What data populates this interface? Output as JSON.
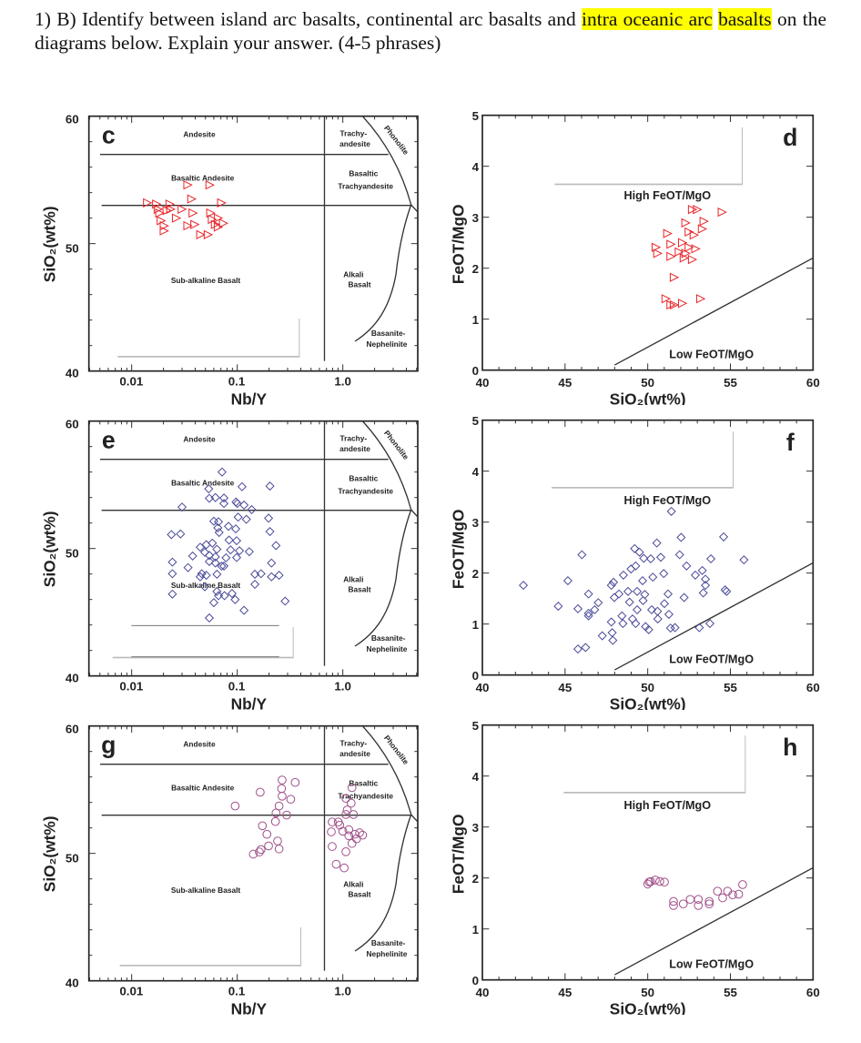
{
  "question": {
    "prefix": "1) B) Identify between island arc basalts, continental arc basalts and ",
    "highlight1": "intra oceanic arc",
    "space": " ",
    "highlight2": "basalts",
    "suffix": " on the diagrams below. Explain your answer.  (4-5 phrases)",
    "highlight_color": "#ffff00"
  },
  "chart_data": [
    {
      "panel": "c",
      "type": "scatter",
      "kind": "classification",
      "xlabel": "Nb/Y",
      "ylabel": "SiO₂(wt%)",
      "xscale": "log",
      "xlim": [
        0.004,
        5.1
      ],
      "ylim": [
        40,
        60
      ],
      "xticks": [
        "0.01",
        "0.1",
        "1.0"
      ],
      "yticks": [
        "40",
        "50",
        "60"
      ],
      "boundaries": {
        "sio2_lines": [
          57,
          53
        ],
        "nb_y_line": 0.67
      },
      "field_labels": [
        "Andesite",
        "Basaltic Andesite",
        "Sub-alkaline Basalt",
        "Trachy-",
        "andesite",
        "Basaltic",
        "Trachyandesite",
        "Alkali",
        "Basalt",
        "Basanite-",
        "Nephelinite",
        "Phonolite"
      ],
      "marker": "triangle",
      "color": "#e8262a",
      "points": [
        [
          0.0141,
          53.2
        ],
        [
          0.0178,
          52.7
        ],
        [
          0.0184,
          52.4
        ],
        [
          0.023,
          53.1
        ],
        [
          0.0216,
          52.6
        ],
        [
          0.0265,
          52.0
        ],
        [
          0.0203,
          51.4
        ],
        [
          0.0203,
          51.0
        ],
        [
          0.034,
          54.6
        ],
        [
          0.03,
          52.7
        ],
        [
          0.037,
          53.5
        ],
        [
          0.0381,
          52.4
        ],
        [
          0.034,
          51.4
        ],
        [
          0.0396,
          51.5
        ],
        [
          0.045,
          50.7
        ],
        [
          0.053,
          50.7
        ],
        [
          0.055,
          54.6
        ],
        [
          0.056,
          52.4
        ],
        [
          0.058,
          51.9
        ],
        [
          0.062,
          51.5
        ],
        [
          0.066,
          52.0
        ],
        [
          0.071,
          53.2
        ],
        [
          0.074,
          51.6
        ],
        [
          0.066,
          51.3
        ],
        [
          0.0172,
          53.1
        ],
        [
          0.019,
          51.8
        ],
        [
          0.0234,
          52.7
        ]
      ]
    },
    {
      "panel": "d",
      "type": "scatter",
      "kind": "feot",
      "xlabel": "SiO₂(wt%)",
      "ylabel": "FeOT/MgO",
      "xlim": [
        40,
        60
      ],
      "ylim": [
        0,
        5
      ],
      "xticks": [
        "40",
        "45",
        "50",
        "55",
        "60"
      ],
      "yticks": [
        "0",
        "1",
        "2",
        "3",
        "4",
        "5"
      ],
      "boundary_line": [
        [
          48,
          0.1
        ],
        [
          60,
          2.2
        ]
      ],
      "field_labels": [
        "High FeOT/MgO",
        "Low FeOT/MgO"
      ],
      "marker": "triangle",
      "color": "#e8262a",
      "points": [
        [
          51.2,
          2.68
        ],
        [
          50.5,
          2.41
        ],
        [
          50.6,
          2.29
        ],
        [
          51.4,
          2.47
        ],
        [
          51.4,
          2.23
        ],
        [
          52.1,
          2.5
        ],
        [
          52.3,
          2.89
        ],
        [
          52.7,
          3.15
        ],
        [
          53.0,
          3.15
        ],
        [
          53.4,
          2.92
        ],
        [
          53.3,
          2.77
        ],
        [
          52.8,
          2.65
        ],
        [
          52.5,
          2.41
        ],
        [
          52.3,
          2.29
        ],
        [
          52.7,
          2.17
        ],
        [
          52.9,
          2.38
        ],
        [
          51.9,
          2.32
        ],
        [
          54.5,
          3.1
        ],
        [
          51.6,
          1.82
        ],
        [
          51.1,
          1.4
        ],
        [
          51.4,
          1.28
        ],
        [
          51.6,
          1.28
        ],
        [
          52.1,
          1.31
        ],
        [
          53.2,
          1.4
        ],
        [
          52.5,
          2.71
        ],
        [
          52.2,
          2.2
        ]
      ]
    },
    {
      "panel": "e",
      "type": "scatter",
      "kind": "classification",
      "xlabel": "Nb/Y",
      "ylabel": "SiO₂(wt%)",
      "xscale": "log",
      "xlim": [
        0.004,
        5.1
      ],
      "ylim": [
        40,
        60
      ],
      "xticks": [
        "0.01",
        "0.1",
        "1.0"
      ],
      "yticks": [
        "40",
        "50",
        "60"
      ],
      "boundaries": {
        "sio2_lines": [
          57,
          53
        ],
        "nb_y_line": 0.67
      },
      "field_labels": [
        "Andesite",
        "Basaltic Andesite",
        "Sub-alkaline Basalt",
        "Trachy-",
        "andesite",
        "Basaltic",
        "Trachyandesite",
        "Alkali",
        "Basalt",
        "Basanite-",
        "Nephelinite",
        "Phonolite"
      ],
      "marker": "diamond",
      "color": "#4a4a9a",
      "points": [
        [
          0.0718,
          56.0
        ],
        [
          0.0537,
          54.68
        ],
        [
          0.111,
          54.85
        ],
        [
          0.204,
          54.9
        ],
        [
          0.0544,
          53.94
        ],
        [
          0.0621,
          54.0
        ],
        [
          0.0748,
          53.96
        ],
        [
          0.0748,
          53.53
        ],
        [
          0.0974,
          53.65
        ],
        [
          0.1,
          53.53
        ],
        [
          0.116,
          53.41
        ],
        [
          0.137,
          53.05
        ],
        [
          0.03,
          53.25
        ],
        [
          0.102,
          52.46
        ],
        [
          0.122,
          52.29
        ],
        [
          0.198,
          52.38
        ],
        [
          0.06,
          52.14
        ],
        [
          0.0664,
          52.1
        ],
        [
          0.0655,
          51.62
        ],
        [
          0.0826,
          51.74
        ],
        [
          0.0968,
          51.54
        ],
        [
          0.0673,
          51.26
        ],
        [
          0.0238,
          51.09
        ],
        [
          0.029,
          51.14
        ],
        [
          0.204,
          51.33
        ],
        [
          0.0446,
          50.1
        ],
        [
          0.0509,
          50.3
        ],
        [
          0.0581,
          50.42
        ],
        [
          0.0642,
          49.94
        ],
        [
          0.0836,
          50.66
        ],
        [
          0.0987,
          50.61
        ],
        [
          0.0865,
          49.89
        ],
        [
          0.105,
          49.82
        ],
        [
          0.13,
          49.75
        ],
        [
          0.233,
          50.23
        ],
        [
          0.0378,
          49.41
        ],
        [
          0.0342,
          48.5
        ],
        [
          0.0493,
          49.7
        ],
        [
          0.0544,
          49.46
        ],
        [
          0.0621,
          49.34
        ],
        [
          0.0783,
          49.27
        ],
        [
          0.0987,
          49.29
        ],
        [
          0.0243,
          48.93
        ],
        [
          0.0544,
          48.98
        ],
        [
          0.0621,
          48.86
        ],
        [
          0.071,
          48.62
        ],
        [
          0.0461,
          48.02
        ],
        [
          0.0509,
          47.9
        ],
        [
          0.0642,
          47.98
        ],
        [
          0.0748,
          48.62
        ],
        [
          0.0243,
          48.02
        ],
        [
          0.147,
          47.98
        ],
        [
          0.168,
          48.02
        ],
        [
          0.147,
          47.19
        ],
        [
          0.211,
          48.86
        ],
        [
          0.211,
          47.78
        ],
        [
          0.249,
          47.9
        ],
        [
          0.0493,
          47.0
        ],
        [
          0.0642,
          46.63
        ],
        [
          0.0664,
          46.3
        ],
        [
          0.0757,
          46.3
        ],
        [
          0.0893,
          46.47
        ],
        [
          0.0955,
          45.99
        ],
        [
          0.06,
          45.75
        ],
        [
          0.116,
          45.15
        ],
        [
          0.284,
          45.87
        ],
        [
          0.0243,
          46.42
        ],
        [
          0.0544,
          44.55
        ],
        [
          0.0446,
          47.78
        ]
      ]
    },
    {
      "panel": "f",
      "type": "scatter",
      "kind": "feot",
      "xlabel": "SiO₂(wt%)",
      "ylabel": "FeOT/MgO",
      "xlim": [
        40,
        60
      ],
      "ylim": [
        0,
        5
      ],
      "xticks": [
        "40",
        "45",
        "50",
        "55",
        "60"
      ],
      "yticks": [
        "0",
        "1",
        "2",
        "3",
        "4",
        "5"
      ],
      "boundary_line": [
        [
          48,
          0.1
        ],
        [
          60,
          2.2
        ]
      ],
      "field_labels": [
        "High FeOT/MgO",
        "Low FeOT/MgO"
      ],
      "marker": "diamond",
      "color": "#4a4a9a",
      "points": [
        [
          42.48,
          1.76
        ],
        [
          44.59,
          1.35
        ],
        [
          45.17,
          1.85
        ],
        [
          45.78,
          1.3
        ],
        [
          46.02,
          2.36
        ],
        [
          46.42,
          1.59
        ],
        [
          46.42,
          1.21
        ],
        [
          46.42,
          1.16
        ],
        [
          46.79,
          1.28
        ],
        [
          47.01,
          1.42
        ],
        [
          47.25,
          0.77
        ],
        [
          45.78,
          0.51
        ],
        [
          46.24,
          0.54
        ],
        [
          47.8,
          1.76
        ],
        [
          47.8,
          1.04
        ],
        [
          47.85,
          0.83
        ],
        [
          47.89,
          0.68
        ],
        [
          47.93,
          1.82
        ],
        [
          47.98,
          1.52
        ],
        [
          48.26,
          1.59
        ],
        [
          48.44,
          1.16
        ],
        [
          48.5,
          1.01
        ],
        [
          48.53,
          1.96
        ],
        [
          48.81,
          1.64
        ],
        [
          48.9,
          1.43
        ],
        [
          48.99,
          2.08
        ],
        [
          49.08,
          1.1
        ],
        [
          49.21,
          2.48
        ],
        [
          49.27,
          2.14
        ],
        [
          49.27,
          1.01
        ],
        [
          49.36,
          1.64
        ],
        [
          49.36,
          1.28
        ],
        [
          49.5,
          2.41
        ],
        [
          49.69,
          1.85
        ],
        [
          49.72,
          1.46
        ],
        [
          49.76,
          2.29
        ],
        [
          49.82,
          1.58
        ],
        [
          49.87,
          0.95
        ],
        [
          50.06,
          0.89
        ],
        [
          50.18,
          2.28
        ],
        [
          50.24,
          1.28
        ],
        [
          50.31,
          1.92
        ],
        [
          50.55,
          2.59
        ],
        [
          50.59,
          1.25
        ],
        [
          50.61,
          1.1
        ],
        [
          50.79,
          2.31
        ],
        [
          50.97,
          1.99
        ],
        [
          51.01,
          1.4
        ],
        [
          51.23,
          1.59
        ],
        [
          51.28,
          1.19
        ],
        [
          51.38,
          0.92
        ],
        [
          51.43,
          3.21
        ],
        [
          51.65,
          0.93
        ],
        [
          51.93,
          2.36
        ],
        [
          52.02,
          2.7
        ],
        [
          52.2,
          1.52
        ],
        [
          52.35,
          2.14
        ],
        [
          52.88,
          1.96
        ],
        [
          53.12,
          0.93
        ],
        [
          53.3,
          2.05
        ],
        [
          53.36,
          1.61
        ],
        [
          53.49,
          1.88
        ],
        [
          53.49,
          1.76
        ],
        [
          53.76,
          1.01
        ],
        [
          53.82,
          2.28
        ],
        [
          54.59,
          2.71
        ],
        [
          54.68,
          1.67
        ],
        [
          54.77,
          1.64
        ],
        [
          55.82,
          2.26
        ]
      ]
    },
    {
      "panel": "g",
      "type": "scatter",
      "kind": "classification",
      "xlabel": "Nb/Y",
      "ylabel": "SiO₂(wt%)",
      "xscale": "log",
      "xlim": [
        0.004,
        5.1
      ],
      "ylim": [
        40,
        60
      ],
      "xticks": [
        "0.01",
        "0.1",
        "1.0"
      ],
      "yticks": [
        "40",
        "50",
        "60"
      ],
      "boundaries": {
        "sio2_lines": [
          57,
          53
        ],
        "nb_y_line": 0.67
      },
      "field_labels": [
        "Andesite",
        "Basaltic Andesite",
        "Sub-alkaline Basalt",
        "Trachy-",
        "andesite",
        "Basaltic",
        "Trachyandesite",
        "Alkali",
        "Basalt",
        "Basanite-",
        "Nephelinite",
        "Phonolite"
      ],
      "marker": "circle",
      "color": "#a0508a",
      "points": [
        [
          0.0955,
          53.72
        ],
        [
          0.165,
          54.8
        ],
        [
          0.266,
          55.76
        ],
        [
          0.354,
          55.57
        ],
        [
          0.263,
          55.09
        ],
        [
          0.266,
          54.49
        ],
        [
          0.321,
          54.25
        ],
        [
          0.249,
          53.72
        ],
        [
          0.233,
          53.17
        ],
        [
          0.294,
          53.01
        ],
        [
          0.23,
          52.5
        ],
        [
          0.173,
          52.17
        ],
        [
          0.191,
          51.5
        ],
        [
          0.168,
          50.3
        ],
        [
          0.142,
          49.94
        ],
        [
          0.162,
          50.11
        ],
        [
          0.198,
          50.59
        ],
        [
          0.241,
          50.97
        ],
        [
          0.249,
          50.35
        ],
        [
          1.22,
          55.16
        ],
        [
          1.07,
          54.32
        ],
        [
          1.2,
          53.94
        ],
        [
          1.1,
          53.41
        ],
        [
          1.26,
          53.05
        ],
        [
          1.07,
          53.05
        ],
        [
          0.793,
          52.46
        ],
        [
          0.906,
          52.46
        ],
        [
          0.778,
          51.69
        ],
        [
          1.0,
          51.74
        ],
        [
          1.14,
          51.86
        ],
        [
          1.3,
          51.5
        ],
        [
          1.44,
          51.62
        ],
        [
          1.54,
          51.43
        ],
        [
          1.14,
          51.38
        ],
        [
          1.35,
          51.14
        ],
        [
          0.793,
          50.54
        ],
        [
          1.22,
          50.78
        ],
        [
          1.07,
          50.13
        ],
        [
          0.865,
          49.15
        ],
        [
          1.03,
          48.86
        ],
        [
          0.936,
          52.22
        ]
      ]
    },
    {
      "panel": "h",
      "type": "scatter",
      "kind": "feot",
      "xlabel": "SiO₂(wt%)",
      "ylabel": "FeOT/MgO",
      "xlim": [
        40,
        60
      ],
      "ylim": [
        0,
        5
      ],
      "xticks": [
        "40",
        "45",
        "50",
        "55",
        "60"
      ],
      "yticks": [
        "0",
        "1",
        "2",
        "3",
        "4",
        "5"
      ],
      "boundary_line": [
        [
          48,
          0.1
        ],
        [
          60,
          2.2
        ]
      ],
      "field_labels": [
        "High FeOT/MgO",
        "Low FeOT/MgO"
      ],
      "marker": "circle",
      "color": "#a0508a",
      "points": [
        [
          50.0,
          1.88
        ],
        [
          50.18,
          1.93
        ],
        [
          50.46,
          1.96
        ],
        [
          50.73,
          1.93
        ],
        [
          51.01,
          1.92
        ],
        [
          50.09,
          1.92
        ],
        [
          51.56,
          1.54
        ],
        [
          51.56,
          1.46
        ],
        [
          52.15,
          1.49
        ],
        [
          52.57,
          1.58
        ],
        [
          53.06,
          1.58
        ],
        [
          53.06,
          1.46
        ],
        [
          53.72,
          1.54
        ],
        [
          53.72,
          1.49
        ],
        [
          54.22,
          1.74
        ],
        [
          54.53,
          1.61
        ],
        [
          54.83,
          1.74
        ],
        [
          55.14,
          1.67
        ],
        [
          55.5,
          1.68
        ],
        [
          55.74,
          1.87
        ]
      ]
    }
  ]
}
